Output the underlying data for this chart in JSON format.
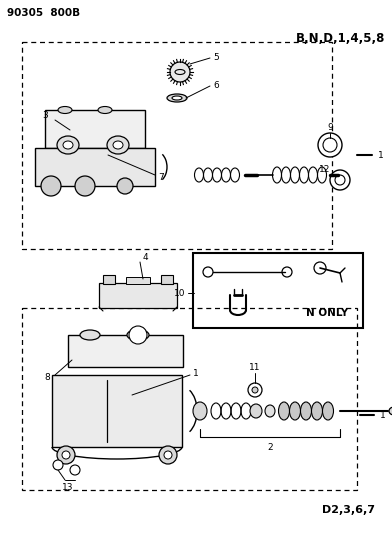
{
  "title_top_left": "90305  800B",
  "title_top_right": "B,N,D,1,4,5,8",
  "title_bottom_right": "D2,3,6,7",
  "n_only_label": "N ONLY",
  "bg_color": "#ffffff",
  "line_color": "#000000"
}
